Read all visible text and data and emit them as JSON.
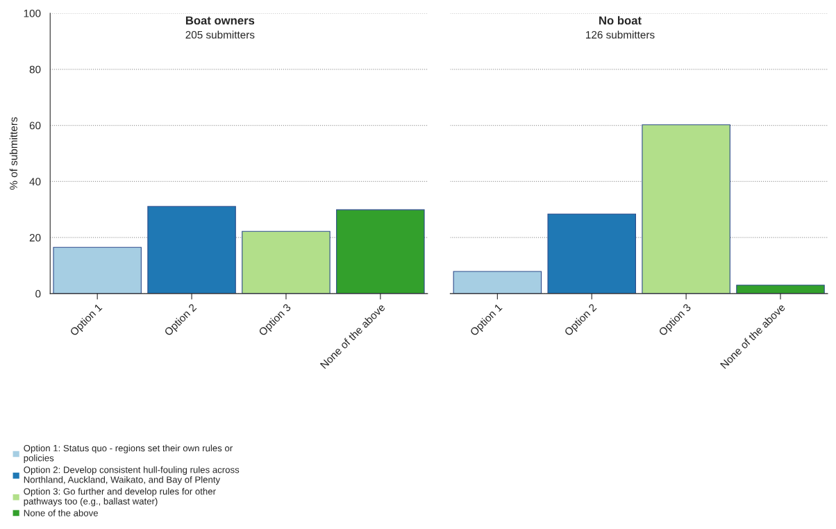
{
  "chart_data": [
    {
      "type": "bar",
      "title": "Boat owners",
      "subtitle": "205 submitters",
      "ylabel": "% of submitters",
      "categories": [
        "Option 1",
        "Option 2",
        "Option 3",
        "None of the above"
      ],
      "ylim": [
        0,
        100
      ],
      "yticks": [
        0,
        20,
        40,
        60,
        80,
        100
      ],
      "grid": "y",
      "legend": "bottom left",
      "series": [
        {
          "name": "Option 1: Status quo - regions set their own rules or policies",
          "color": "#a6cee3",
          "values": [
            16.5,
            null,
            null,
            null
          ]
        },
        {
          "name": "Option 2: Develop consistent hull-fouling rules across Northland, Auckland, Waikato, and Bay of Plenty",
          "color": "#1f78b4",
          "values": [
            null,
            31.1,
            null,
            null
          ]
        },
        {
          "name": "Option 3: Go further and develop rules for other pathways too (e.g., ballast water)",
          "color": "#b2df8a",
          "values": [
            null,
            null,
            22.2,
            null
          ]
        },
        {
          "name": "None of the above",
          "color": "#33a02c",
          "values": [
            null,
            null,
            null,
            29.9
          ]
        }
      ]
    },
    {
      "type": "bar",
      "title": "No boat",
      "subtitle": "126 submitters",
      "categories": [
        "Option 1",
        "Option 2",
        "Option 3",
        "None of the above"
      ],
      "ylim": [
        0,
        100
      ],
      "yticks": [
        0,
        20,
        40,
        60,
        80,
        100
      ],
      "grid": "y",
      "tick_labels": "x",
      "series": [
        {
          "color": "#a6cee3",
          "values": [
            7.9,
            null,
            null,
            null
          ]
        },
        {
          "color": "#1f78b4",
          "values": [
            null,
            28.4,
            null,
            null
          ]
        },
        {
          "color": "#b2df8a",
          "values": [
            null,
            null,
            60.2,
            null
          ]
        },
        {
          "color": "#33a02c",
          "values": [
            null,
            null,
            null,
            3.0
          ]
        }
      ]
    }
  ]
}
